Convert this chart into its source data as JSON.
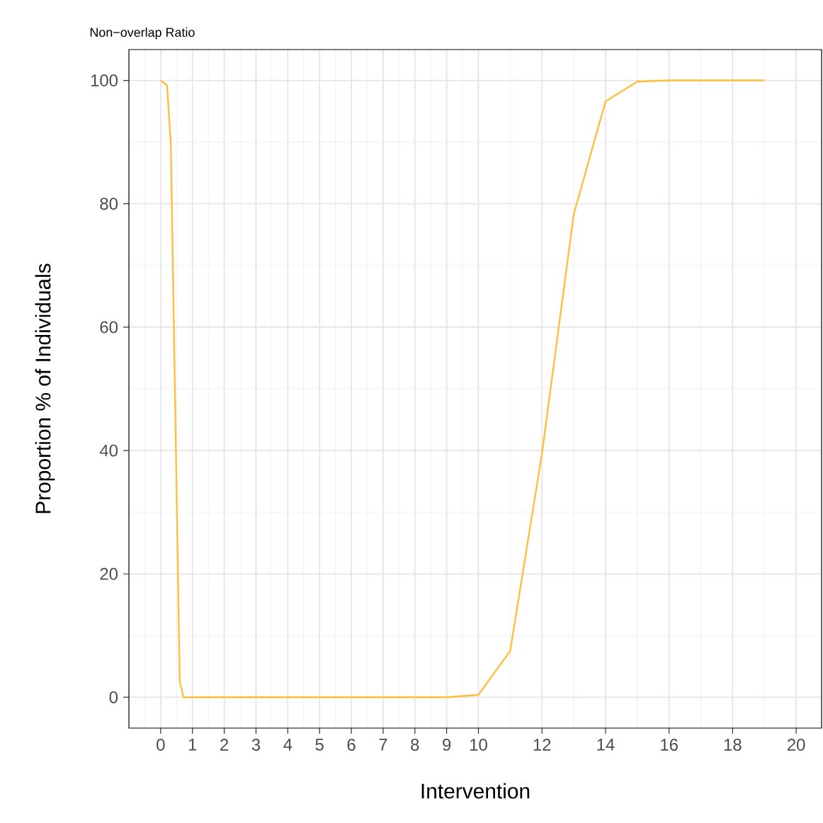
{
  "chart_data": {
    "type": "line",
    "title": "Non−overlap Ratio",
    "xlabel": "Intervention",
    "ylabel": "Proportion % of Individuals",
    "x": [
      0,
      0.2,
      0.32,
      0.6,
      0.72,
      1,
      2,
      3,
      4,
      5,
      6,
      7,
      8,
      9,
      10,
      11,
      12,
      13,
      14,
      15,
      16,
      17,
      18,
      19
    ],
    "series": [
      {
        "color": "#ffbe3c",
        "values": [
          100,
          99.2,
          89.7,
          2.5,
          0,
          0,
          0,
          0,
          0,
          0,
          0,
          0,
          0,
          0,
          0.4,
          7.5,
          39.5,
          78.3,
          96.6,
          99.8,
          100,
          100,
          100,
          100
        ]
      }
    ],
    "xlim": [
      -1,
      20.8
    ],
    "ylim": [
      -5,
      105
    ],
    "xticks": [
      0,
      1,
      2,
      3,
      4,
      5,
      6,
      7,
      8,
      9,
      10,
      12,
      14,
      16,
      18,
      20
    ],
    "yticks": [
      0,
      20,
      40,
      60,
      80,
      100
    ],
    "grid": true,
    "marker": "none",
    "line_style": "solid"
  }
}
